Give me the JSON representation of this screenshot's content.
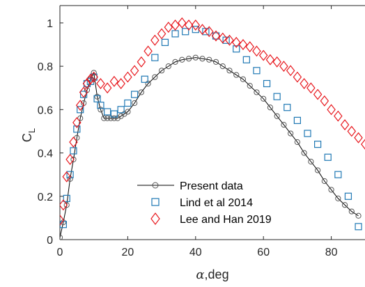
{
  "chart_data": {
    "type": "scatter",
    "xlabel_symbol": "α",
    "xlabel_unit": ",deg",
    "ylabel_main": "C",
    "ylabel_sub": "L",
    "xlim": [
      0,
      90
    ],
    "ylim": [
      0,
      1.08
    ],
    "xticks": [
      "0",
      "20",
      "40",
      "60",
      "80"
    ],
    "yticks": [
      "0",
      "0.2",
      "0.4",
      "0.6",
      "0.8",
      "1"
    ],
    "legend_position": "bottom-center",
    "series": [
      {
        "name": "Present data",
        "style": "line-circle",
        "color": "#000000",
        "marker_color": "#555555",
        "x": [
          0,
          1,
          2,
          3,
          4,
          5,
          6,
          7,
          8,
          9,
          10,
          11,
          12,
          13,
          14,
          15,
          16,
          17,
          18,
          19,
          20,
          22,
          24,
          26,
          28,
          30,
          32,
          34,
          36,
          38,
          40,
          42,
          44,
          46,
          48,
          50,
          52,
          54,
          56,
          58,
          60,
          62,
          64,
          66,
          68,
          70,
          72,
          74,
          76,
          78,
          80,
          82,
          84,
          86,
          88
        ],
        "y": [
          0.01,
          0.08,
          0.16,
          0.28,
          0.37,
          0.47,
          0.56,
          0.63,
          0.69,
          0.74,
          0.77,
          0.66,
          0.6,
          0.56,
          0.56,
          0.56,
          0.56,
          0.56,
          0.57,
          0.58,
          0.59,
          0.63,
          0.68,
          0.72,
          0.75,
          0.78,
          0.8,
          0.82,
          0.83,
          0.835,
          0.84,
          0.835,
          0.83,
          0.82,
          0.8,
          0.78,
          0.76,
          0.74,
          0.71,
          0.68,
          0.65,
          0.61,
          0.57,
          0.53,
          0.49,
          0.45,
          0.4,
          0.36,
          0.32,
          0.27,
          0.23,
          0.19,
          0.16,
          0.13,
          0.11
        ]
      },
      {
        "name": "Lind et al 2014",
        "style": "square",
        "color": "#1f78b4",
        "x": [
          1,
          2,
          3,
          4,
          5,
          6,
          7,
          8,
          9,
          10,
          11,
          12,
          14,
          16,
          18,
          20,
          22,
          25,
          28,
          31,
          34,
          37,
          40,
          43,
          46,
          49,
          52,
          55,
          58,
          61,
          64,
          67,
          70,
          73,
          76,
          79,
          82,
          85,
          88
        ],
        "y": [
          0.07,
          0.19,
          0.3,
          0.41,
          0.51,
          0.6,
          0.67,
          0.72,
          0.73,
          0.75,
          0.65,
          0.62,
          0.59,
          0.58,
          0.6,
          0.63,
          0.67,
          0.74,
          0.84,
          0.91,
          0.95,
          0.96,
          0.97,
          0.96,
          0.94,
          0.92,
          0.88,
          0.83,
          0.78,
          0.72,
          0.66,
          0.61,
          0.55,
          0.49,
          0.44,
          0.38,
          0.3,
          0.2,
          0.06
        ]
      },
      {
        "name": "Lee and Han 2019",
        "style": "diamond",
        "color": "#e8191f",
        "x": [
          0,
          1,
          2,
          3,
          4,
          5,
          6,
          7,
          8,
          9,
          10,
          12,
          14,
          16,
          18,
          20,
          22,
          24,
          26,
          28,
          30,
          32,
          34,
          36,
          38,
          40,
          42,
          44,
          46,
          48,
          50,
          52,
          54,
          56,
          58,
          60,
          62,
          64,
          66,
          68,
          70,
          72,
          74,
          76,
          78,
          80,
          82,
          84,
          86,
          88,
          90
        ],
        "y": [
          0.09,
          0.16,
          0.29,
          0.37,
          0.45,
          0.54,
          0.62,
          0.68,
          0.72,
          0.74,
          0.75,
          0.72,
          0.7,
          0.73,
          0.72,
          0.75,
          0.78,
          0.82,
          0.87,
          0.92,
          0.95,
          0.98,
          0.99,
          1.0,
          0.99,
          0.99,
          0.97,
          0.96,
          0.94,
          0.93,
          0.92,
          0.91,
          0.9,
          0.89,
          0.87,
          0.85,
          0.83,
          0.82,
          0.8,
          0.78,
          0.75,
          0.72,
          0.7,
          0.67,
          0.64,
          0.6,
          0.57,
          0.53,
          0.5,
          0.47,
          0.44
        ]
      }
    ]
  }
}
